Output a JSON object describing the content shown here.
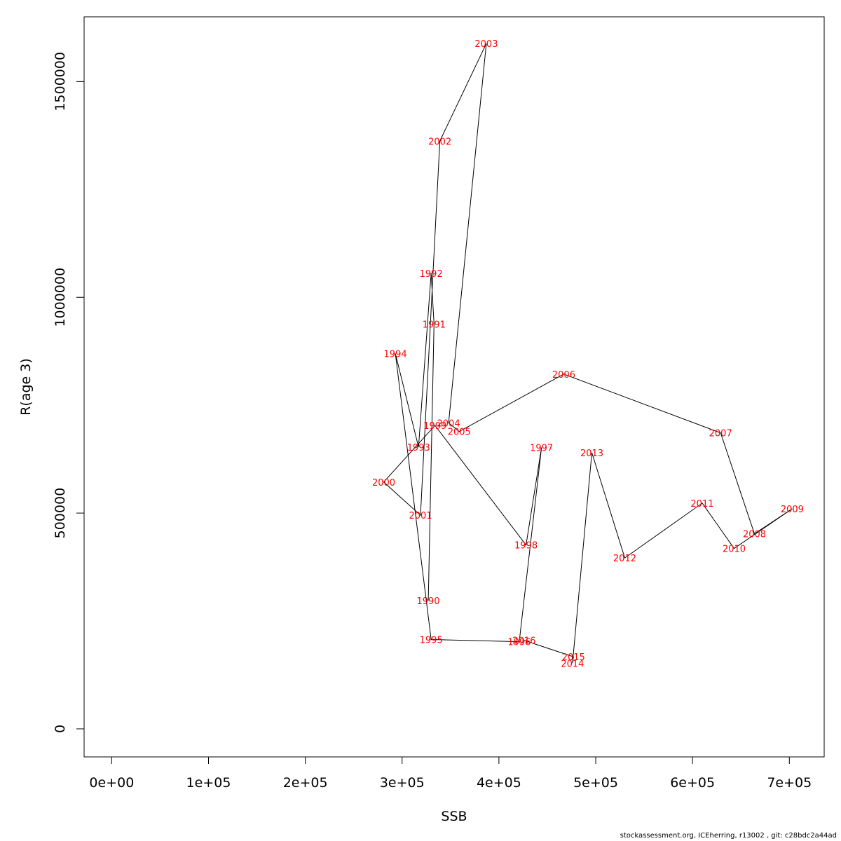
{
  "chart_data": {
    "type": "line",
    "xlabel": "SSB",
    "ylabel": "R(age 3)",
    "xlim": [
      -28500,
      736000
    ],
    "ylim": [
      -65000,
      1650000
    ],
    "x_ticks": [
      0,
      100000,
      200000,
      300000,
      400000,
      500000,
      600000,
      700000
    ],
    "x_tick_labels": [
      "0e+00",
      "1e+05",
      "2e+05",
      "3e+05",
      "4e+05",
      "5e+05",
      "6e+05",
      "7e+05"
    ],
    "y_ticks": [
      0,
      500000,
      1000000,
      1500000
    ],
    "y_tick_labels": [
      "0",
      "500000",
      "1000000",
      "1500000"
    ],
    "grid": false,
    "line_color": "#000000",
    "label_color": "#ff0000",
    "points": [
      {
        "year": "1990",
        "ssb": 327000,
        "r": 297000
      },
      {
        "year": "1991",
        "ssb": 333000,
        "r": 938000
      },
      {
        "year": "1992",
        "ssb": 330000,
        "r": 1056000
      },
      {
        "year": "1993",
        "ssb": 317000,
        "r": 653000
      },
      {
        "year": "1994",
        "ssb": 293000,
        "r": 870000
      },
      {
        "year": "1995",
        "ssb": 330000,
        "r": 207000
      },
      {
        "year": "1996",
        "ssb": 421000,
        "r": 202000
      },
      {
        "year": "1997",
        "ssb": 444000,
        "r": 652000
      },
      {
        "year": "1998",
        "ssb": 428000,
        "r": 426000
      },
      {
        "year": "1999",
        "ssb": 334000,
        "r": 703000
      },
      {
        "year": "2000",
        "ssb": 281000,
        "r": 572000
      },
      {
        "year": "2001",
        "ssb": 319000,
        "r": 495000
      },
      {
        "year": "2002",
        "ssb": 339000,
        "r": 1362000
      },
      {
        "year": "2003",
        "ssb": 387000,
        "r": 1588000
      },
      {
        "year": "2004",
        "ssb": 348000,
        "r": 709000
      },
      {
        "year": "2005",
        "ssb": 359000,
        "r": 689000
      },
      {
        "year": "2006",
        "ssb": 467000,
        "r": 822000
      },
      {
        "year": "2007",
        "ssb": 629000,
        "r": 686000
      },
      {
        "year": "2008",
        "ssb": 664000,
        "r": 452000
      },
      {
        "year": "2009",
        "ssb": 703000,
        "r": 510000
      },
      {
        "year": "2010",
        "ssb": 643000,
        "r": 418000
      },
      {
        "year": "2011",
        "ssb": 610000,
        "r": 523000
      },
      {
        "year": "2012",
        "ssb": 530000,
        "r": 396000
      },
      {
        "year": "2013",
        "ssb": 496000,
        "r": 640000
      },
      {
        "year": "2014",
        "ssb": 476000,
        "r": 152000
      },
      {
        "year": "2015",
        "ssb": 477000,
        "r": 167000
      },
      {
        "year": "2016",
        "ssb": 426000,
        "r": 205000
      }
    ]
  },
  "footer": {
    "credit": "stockassessment.org, ICEherring, r13002 , git: c28bdc2a44ad"
  }
}
